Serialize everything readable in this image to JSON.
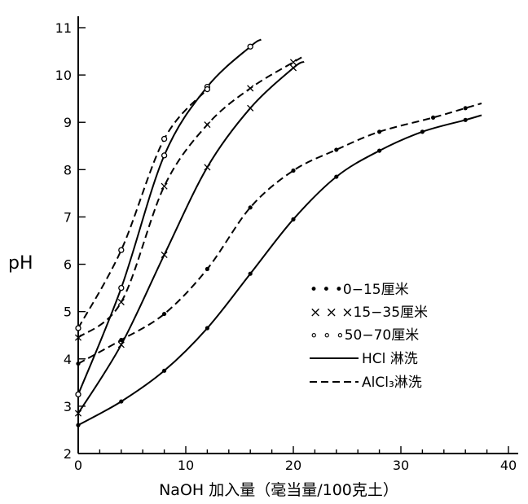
{
  "chart_data": {
    "type": "line",
    "xlabel": "NaOH 加入量（毫当量/100克土）",
    "ylabel": "pH",
    "xlim": [
      0,
      40
    ],
    "ylim": [
      2,
      11
    ],
    "xticks": [
      "0",
      "10",
      "20",
      "30",
      "40"
    ],
    "yticks": [
      "2",
      "3",
      "4",
      "5",
      "6",
      "7",
      "8",
      "9",
      "10",
      "11"
    ],
    "legend": {
      "placement": "right",
      "entries": [
        {
          "marker": "dot",
          "label": "• • •0−15厘米"
        },
        {
          "marker": "cross",
          "label": "× × ×15−35厘米"
        },
        {
          "marker": "circle",
          "label": "∘ ∘ ∘50−70厘米"
        },
        {
          "style": "solid",
          "label": "HCl  淋洗"
        },
        {
          "style": "dashed",
          "label": "AlCl₃淋洗"
        }
      ]
    },
    "series": [
      {
        "depth": "0-15",
        "treatment": "HCl",
        "marker": "dot",
        "style": "solid",
        "points": [
          [
            0,
            2.6
          ],
          [
            4,
            3.1
          ],
          [
            8,
            3.75
          ],
          [
            12,
            4.65
          ],
          [
            16,
            5.8
          ],
          [
            20,
            6.95
          ],
          [
            24,
            7.85
          ],
          [
            28,
            8.4
          ],
          [
            32,
            8.8
          ],
          [
            36,
            9.05
          ],
          [
            37.5,
            9.15
          ]
        ]
      },
      {
        "depth": "0-15",
        "treatment": "AlCl3",
        "marker": "dot",
        "style": "dashed",
        "points": [
          [
            0,
            3.9
          ],
          [
            4,
            4.4
          ],
          [
            8,
            4.95
          ],
          [
            12,
            5.9
          ],
          [
            16,
            7.2
          ],
          [
            20,
            7.98
          ],
          [
            24,
            8.42
          ],
          [
            28,
            8.8
          ],
          [
            33,
            9.1
          ],
          [
            36,
            9.3
          ],
          [
            37.5,
            9.4
          ]
        ]
      },
      {
        "depth": "15-35",
        "treatment": "HCl",
        "marker": "cross",
        "style": "solid",
        "points": [
          [
            0,
            2.85
          ],
          [
            4,
            4.3
          ],
          [
            8,
            6.2
          ],
          [
            12,
            8.05
          ],
          [
            16,
            9.3
          ],
          [
            20,
            10.15
          ],
          [
            21,
            10.28
          ]
        ]
      },
      {
        "depth": "15-35",
        "treatment": "AlCl3",
        "marker": "cross",
        "style": "dashed",
        "points": [
          [
            0,
            4.45
          ],
          [
            4,
            5.2
          ],
          [
            8,
            7.65
          ],
          [
            12,
            8.95
          ],
          [
            16,
            9.72
          ],
          [
            20,
            10.27
          ],
          [
            21,
            10.4
          ]
        ]
      },
      {
        "depth": "50-70",
        "treatment": "HCl",
        "marker": "circle",
        "style": "solid",
        "points": [
          [
            0,
            3.25
          ],
          [
            4,
            5.5
          ],
          [
            8,
            8.3
          ],
          [
            12,
            9.75
          ],
          [
            16,
            10.6
          ],
          [
            17,
            10.75
          ]
        ]
      },
      {
        "depth": "50-70",
        "treatment": "AlCl3",
        "marker": "circle",
        "style": "dashed",
        "points": [
          [
            0,
            4.65
          ],
          [
            4,
            6.3
          ],
          [
            8,
            8.65
          ],
          [
            12,
            9.7
          ]
        ]
      }
    ]
  }
}
